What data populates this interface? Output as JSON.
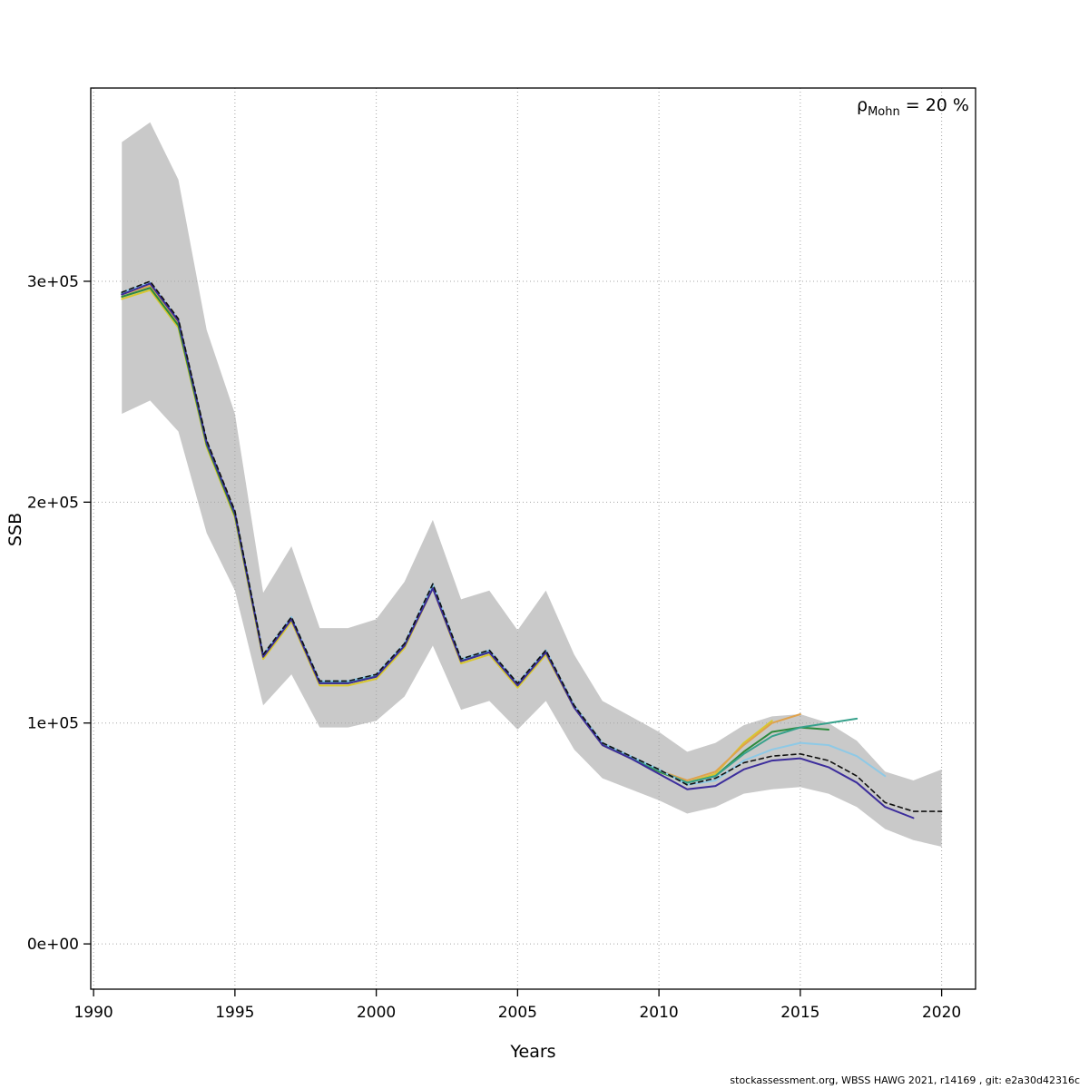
{
  "annotation": {
    "rho_symbol": "ρ",
    "rho_sub": "Mohn",
    "rho_value": " = 20 %"
  },
  "axes": {
    "xlabel": "Years",
    "ylabel": "SSB",
    "x_ticks": [
      1990,
      1995,
      2000,
      2005,
      2010,
      2015,
      2020
    ],
    "y_ticks": [
      {
        "v": 0,
        "label": "0e+00"
      },
      {
        "v": 100000,
        "label": "1e+05"
      },
      {
        "v": 200000,
        "label": "2e+05"
      },
      {
        "v": 300000,
        "label": "3e+05"
      }
    ]
  },
  "footer": {
    "text": "stockassessment.org, WBSS HAWG 2021, r14169 , git: e2a30d42316c"
  },
  "chart_data": {
    "type": "line",
    "title": "Retrospective SSB with Mohn's rho = 20 %",
    "xlabel": "Years",
    "ylabel": "SSB",
    "xlim": [
      1989.9,
      2021.2
    ],
    "ylim": [
      -20500,
      387500
    ],
    "grid": "dotted",
    "legend": "none",
    "band": {
      "name": "confidence-band",
      "color": "#c9c9c9",
      "years": [
        1991,
        1992,
        1993,
        1994,
        1995,
        1996,
        1997,
        1998,
        1999,
        2000,
        2001,
        2002,
        2003,
        2004,
        2005,
        2006,
        2007,
        2008,
        2009,
        2010,
        2011,
        2012,
        2013,
        2014,
        2015,
        2016,
        2017,
        2018,
        2019,
        2020
      ],
      "lower": [
        240000,
        246000,
        232000,
        186000,
        160000,
        108000,
        122000,
        98000,
        98000,
        101000,
        112000,
        135000,
        106000,
        110000,
        97000,
        110000,
        88000,
        75000,
        70000,
        65000,
        59000,
        62000,
        68000,
        70000,
        71000,
        68000,
        62000,
        52000,
        47000,
        44000
      ],
      "upper": [
        363000,
        372000,
        346000,
        278000,
        240000,
        159000,
        180000,
        143000,
        143000,
        147000,
        164000,
        192000,
        156000,
        160000,
        142000,
        160000,
        131000,
        110000,
        103000,
        96000,
        87000,
        91000,
        99000,
        103000,
        104000,
        100000,
        92000,
        78000,
        74000,
        79000
      ]
    },
    "series": [
      {
        "name": "retro-peel-2014",
        "color": "#d9c72e",
        "width": 2,
        "years": [
          1991,
          1992,
          1993,
          1994,
          1995,
          1996,
          1997,
          1998,
          1999,
          2000,
          2001,
          2002,
          2003,
          2004,
          2005,
          2006,
          2007,
          2008,
          2009,
          2010,
          2011,
          2012,
          2013,
          2014
        ],
        "values": [
          292000,
          296000,
          279000,
          225000,
          193000,
          129000,
          146000,
          117000,
          117000,
          120000,
          134000,
          161000,
          127000,
          131000,
          116000,
          131000,
          107000,
          90000,
          84000,
          78000,
          73000,
          77000,
          91000,
          101000
        ]
      },
      {
        "name": "retro-peel-2015",
        "color": "#dfa24c",
        "width": 2,
        "years": [
          1991,
          1992,
          1993,
          1994,
          1995,
          1996,
          1997,
          1998,
          1999,
          2000,
          2001,
          2002,
          2003,
          2004,
          2005,
          2006,
          2007,
          2008,
          2009,
          2010,
          2011,
          2012,
          2013,
          2014,
          2015
        ],
        "values": [
          294000,
          298000,
          281000,
          226000,
          194000,
          130000,
          147000,
          118000,
          118000,
          121000,
          135000,
          162000,
          128000,
          132000,
          117000,
          132000,
          107500,
          90500,
          84500,
          78500,
          74000,
          78000,
          90000,
          100000,
          104000
        ]
      },
      {
        "name": "retro-peel-2016",
        "color": "#2d8a3c",
        "width": 2,
        "years": [
          1991,
          1992,
          1993,
          1994,
          1995,
          1996,
          1997,
          1998,
          1999,
          2000,
          2001,
          2002,
          2003,
          2004,
          2005,
          2006,
          2007,
          2008,
          2009,
          2010,
          2011,
          2012,
          2013,
          2014,
          2015,
          2016
        ],
        "values": [
          293000,
          297000,
          280000,
          226000,
          194000,
          130000,
          147000,
          118000,
          118000,
          121000,
          135000,
          161500,
          128000,
          132000,
          117000,
          132000,
          107500,
          90500,
          84500,
          78000,
          73000,
          76000,
          87000,
          96000,
          98000,
          97000
        ]
      },
      {
        "name": "retro-peel-2017",
        "color": "#36a18b",
        "width": 2,
        "years": [
          1991,
          1992,
          1993,
          1994,
          1995,
          1996,
          1997,
          1998,
          1999,
          2000,
          2001,
          2002,
          2003,
          2004,
          2005,
          2006,
          2007,
          2008,
          2009,
          2010,
          2011,
          2012,
          2013,
          2014,
          2015,
          2016,
          2017
        ],
        "values": [
          294500,
          299000,
          282000,
          227000,
          195000,
          130500,
          147500,
          118500,
          118500,
          121500,
          135500,
          162500,
          128500,
          132500,
          117500,
          132500,
          108000,
          91000,
          84500,
          78500,
          73000,
          76000,
          86000,
          94000,
          98000,
          100000,
          102000
        ]
      },
      {
        "name": "retro-peel-2018",
        "color": "#8ec9e6",
        "width": 2,
        "years": [
          1991,
          1992,
          1993,
          1994,
          1995,
          1996,
          1997,
          1998,
          1999,
          2000,
          2001,
          2002,
          2003,
          2004,
          2005,
          2006,
          2007,
          2008,
          2009,
          2010,
          2011,
          2012,
          2013,
          2014,
          2015,
          2016,
          2017,
          2018
        ],
        "values": [
          295000,
          299500,
          282500,
          227500,
          195500,
          131000,
          148000,
          119000,
          119000,
          122000,
          136000,
          163000,
          129000,
          133000,
          118000,
          133000,
          108000,
          91000,
          85000,
          79000,
          72000,
          74000,
          83000,
          88000,
          91000,
          90000,
          85000,
          76000
        ]
      },
      {
        "name": "retro-peel-2019",
        "color": "#3c2d9c",
        "width": 2,
        "years": [
          1991,
          1992,
          1993,
          1994,
          1995,
          1996,
          1997,
          1998,
          1999,
          2000,
          2001,
          2002,
          2003,
          2004,
          2005,
          2006,
          2007,
          2008,
          2009,
          2010,
          2011,
          2012,
          2013,
          2014,
          2015,
          2016,
          2017,
          2018,
          2019
        ],
        "values": [
          294000,
          299000,
          282000,
          227000,
          195000,
          130000,
          147000,
          118000,
          118000,
          121000,
          135000,
          161000,
          128000,
          132000,
          117000,
          132000,
          107000,
          90000,
          84000,
          77000,
          70000,
          71500,
          79000,
          83000,
          84000,
          80000,
          73000,
          62000,
          57000
        ]
      },
      {
        "name": "base-assessment-2020",
        "color": "#111111",
        "width": 1.6,
        "dash": "5,4",
        "years": [
          1991,
          1992,
          1993,
          1994,
          1995,
          1996,
          1997,
          1998,
          1999,
          2000,
          2001,
          2002,
          2003,
          2004,
          2005,
          2006,
          2007,
          2008,
          2009,
          2010,
          2011,
          2012,
          2013,
          2014,
          2015,
          2016,
          2017,
          2018,
          2019,
          2020
        ],
        "values": [
          295000,
          300000,
          283000,
          228000,
          196000,
          131000,
          148000,
          119000,
          119000,
          122000,
          136000,
          163000,
          129000,
          133000,
          118000,
          133000,
          108000,
          91000,
          85000,
          79000,
          72000,
          75000,
          82000,
          85000,
          86000,
          83000,
          76000,
          64000,
          60000,
          60000
        ]
      }
    ]
  }
}
